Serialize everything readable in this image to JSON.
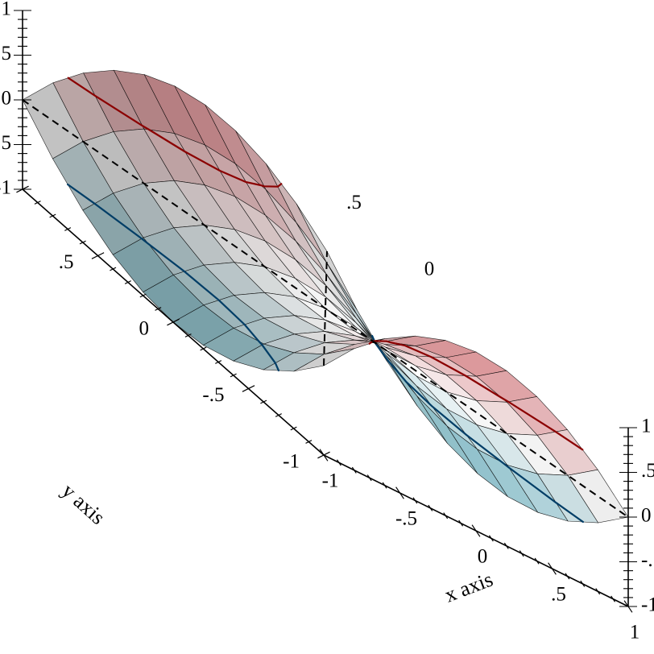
{
  "chart_data": {
    "type": "surface3d",
    "function": "z = x^2 - y^2",
    "title": "",
    "xlabel": "x axis",
    "ylabel": "y axis",
    "zlabel": "",
    "xlim": [
      -1,
      1
    ],
    "ylim": [
      -1,
      1
    ],
    "zlim": [
      -1,
      1
    ],
    "x_ticks": [
      "-1",
      "-.5",
      "0",
      ".5",
      "1"
    ],
    "y_ticks": [
      "-1",
      "-.5",
      "0",
      ".5",
      "1"
    ],
    "z_ticks": [
      "-1",
      "-.5",
      "0",
      ".5",
      "1"
    ],
    "back_y_ticks": [
      "0",
      ".5"
    ],
    "grid_n": 11,
    "x": [
      -1,
      -0.8,
      -0.6,
      -0.4,
      -0.2,
      0,
      0.2,
      0.4,
      0.6,
      0.8,
      1
    ],
    "y": [
      -1,
      -0.8,
      -0.6,
      -0.4,
      -0.2,
      0,
      0.2,
      0.4,
      0.6,
      0.8,
      1
    ],
    "z": [
      [
        0,
        -0.36,
        -0.64,
        -0.84,
        -0.96,
        -1,
        -0.96,
        -0.84,
        -0.64,
        -0.36,
        0
      ],
      [
        0.36,
        0,
        -0.28,
        -0.48,
        -0.6,
        -0.64,
        -0.6,
        -0.48,
        -0.28,
        0,
        0.36
      ],
      [
        0.64,
        0.28,
        0,
        -0.2,
        -0.32,
        -0.36,
        -0.32,
        -0.2,
        0,
        0.28,
        0.64
      ],
      [
        0.84,
        0.48,
        0.2,
        0,
        -0.12,
        -0.16,
        -0.12,
        0,
        0.2,
        0.48,
        0.84
      ],
      [
        0.96,
        0.6,
        0.32,
        0.12,
        0,
        -0.04,
        0,
        0.12,
        0.32,
        0.6,
        0.96
      ],
      [
        1,
        0.64,
        0.36,
        0.16,
        0.04,
        0,
        0.04,
        0.16,
        0.36,
        0.64,
        1
      ],
      [
        0.96,
        0.6,
        0.32,
        0.12,
        0,
        -0.04,
        0,
        0.12,
        0.32,
        0.6,
        0.96
      ],
      [
        0.84,
        0.48,
        0.2,
        0,
        -0.12,
        -0.16,
        -0.12,
        0,
        0.2,
        0.48,
        0.84
      ],
      [
        0.64,
        0.28,
        0,
        -0.2,
        -0.32,
        -0.36,
        -0.32,
        -0.2,
        0,
        0.28,
        0.64
      ],
      [
        0.36,
        0,
        -0.28,
        -0.48,
        -0.6,
        -0.64,
        -0.6,
        -0.48,
        -0.28,
        0,
        0.36
      ],
      [
        0,
        -0.36,
        -0.64,
        -0.84,
        -0.96,
        -1,
        -0.96,
        -0.84,
        -0.64,
        -0.36,
        0
      ]
    ],
    "contour_levels": [
      -0.5,
      0.5
    ],
    "colors": {
      "high": "#e88a8f",
      "low": "#7fc2d0",
      "mid": "#ffffff",
      "contour_high": "#8b0000",
      "contour_low": "#003d66",
      "mesh": "#000000",
      "axis": "#000000"
    },
    "grid": false,
    "legend": "none"
  }
}
